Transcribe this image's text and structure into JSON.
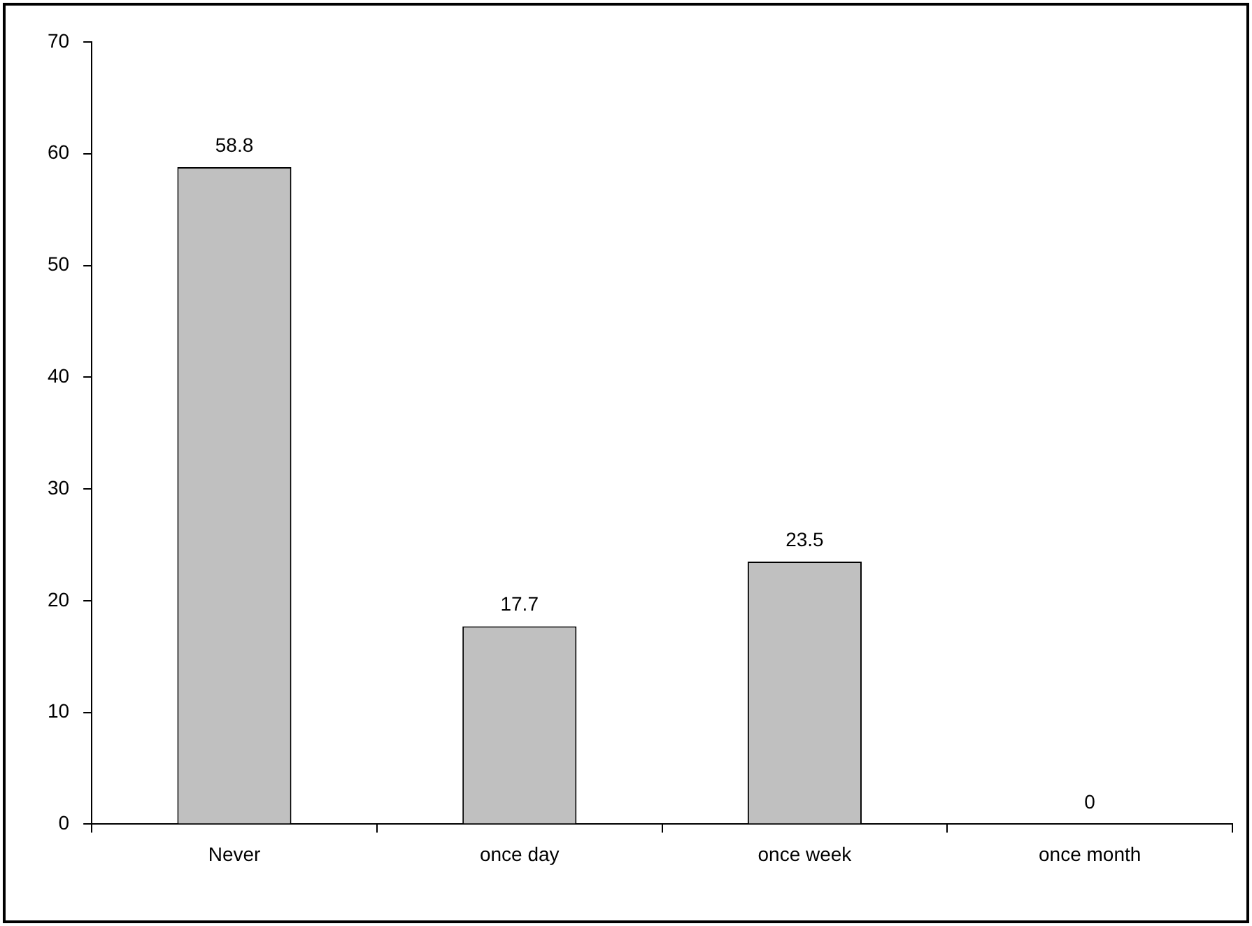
{
  "chart_data": {
    "type": "bar",
    "categories": [
      "Never",
      "once day",
      "once week",
      "once month"
    ],
    "values": [
      58.8,
      17.7,
      23.5,
      0
    ],
    "color": "#c0c0c0",
    "ylim": [
      0,
      70
    ],
    "yticks": [
      0,
      10,
      20,
      30,
      40,
      50,
      60,
      70
    ],
    "grid": false,
    "data_labels": true
  }
}
